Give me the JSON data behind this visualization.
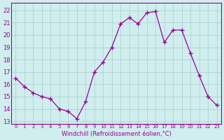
{
  "x": [
    0,
    1,
    2,
    3,
    4,
    5,
    6,
    7,
    8,
    9,
    10,
    11,
    12,
    13,
    14,
    15,
    16,
    17,
    18,
    19,
    20,
    21,
    22,
    23
  ],
  "y": [
    16.5,
    15.8,
    15.3,
    15.0,
    14.8,
    14.0,
    13.8,
    13.2,
    14.6,
    17.0,
    17.8,
    19.0,
    20.9,
    21.4,
    20.9,
    21.8,
    21.9,
    19.4,
    20.4,
    20.4,
    18.5,
    16.7,
    15.0,
    14.3
  ],
  "line_color": "#990099",
  "marker": "P",
  "marker_size": 3,
  "bg_color": "#d0eeee",
  "grid_color": "#aacccc",
  "xlabel": "Windchill (Refroidissement éolien,°C)",
  "ylabel_ticks": [
    13,
    14,
    15,
    16,
    17,
    18,
    19,
    20,
    21,
    22
  ],
  "xlim": [
    -0.5,
    23.5
  ],
  "ylim": [
    12.8,
    22.6
  ],
  "title": ""
}
